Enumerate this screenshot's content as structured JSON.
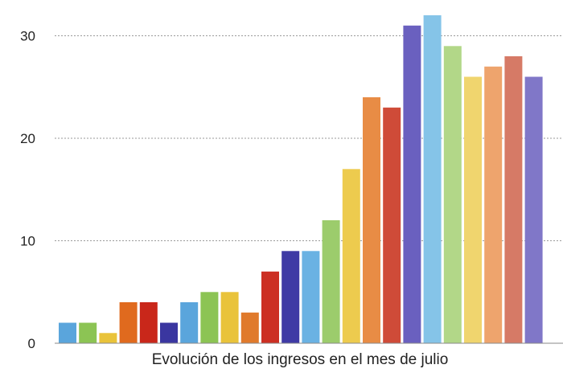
{
  "chart_data": {
    "type": "bar",
    "xlabel": "Evolución de los ingresos en el mes de julio",
    "ylabel": "",
    "ylim": [
      0,
      32
    ],
    "yticks": [
      0,
      10,
      20,
      30
    ],
    "grid": "horizontal-dotted",
    "values": [
      2,
      2,
      1,
      4,
      4,
      2,
      4,
      5,
      5,
      3,
      7,
      9,
      9,
      12,
      17,
      24,
      23,
      31,
      32,
      29,
      26,
      27,
      28,
      26
    ],
    "colors": [
      "#5aa5dc",
      "#8cc454",
      "#e9c33a",
      "#e06a1e",
      "#c9271a",
      "#3a36a0",
      "#5aa5dc",
      "#8cc454",
      "#e9c33a",
      "#e07a2c",
      "#cc2f23",
      "#3f3aa5",
      "#6ab2e3",
      "#9ccc6c",
      "#edcb4e",
      "#e88c45",
      "#cf4b38",
      "#6a60bf",
      "#85c4e8",
      "#b2d788",
      "#f0d56e",
      "#eea46d",
      "#d67a66",
      "#8077c8"
    ]
  }
}
